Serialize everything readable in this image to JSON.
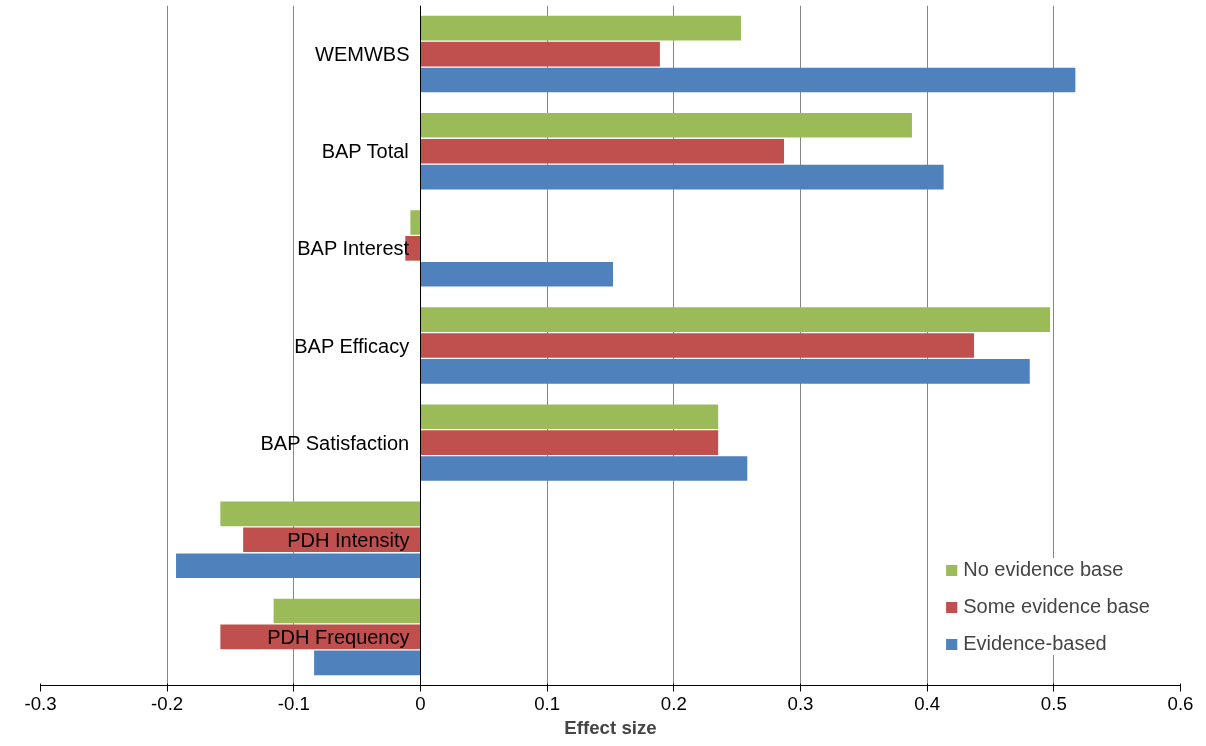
{
  "chart_data": {
    "type": "bar",
    "orientation": "horizontal",
    "xlabel": "Effect size",
    "categories": [
      "WEMWBS",
      "BAP Total",
      "BAP Interest",
      "BAP Efficacy",
      "BAP Satisfaction",
      "PDH Intensity",
      "PDH Frequency"
    ],
    "series": [
      {
        "name": "No evidence base",
        "color": "#9bbb59",
        "values": [
          0.253,
          0.388,
          -0.008,
          0.497,
          0.235,
          -0.158,
          -0.116
        ]
      },
      {
        "name": "Some evidence base",
        "color": "#c0504d",
        "values": [
          0.189,
          0.287,
          -0.012,
          0.437,
          0.235,
          -0.14,
          -0.158
        ]
      },
      {
        "name": "Evidence-based",
        "color": "#4f81bd",
        "values": [
          0.517,
          0.413,
          0.152,
          0.481,
          0.258,
          -0.193,
          -0.084
        ]
      }
    ],
    "xlim": [
      -0.3,
      0.6
    ],
    "xticks": [
      -0.3,
      -0.2,
      -0.1,
      0,
      0.1,
      0.2,
      0.3,
      0.4,
      0.5,
      0.6
    ],
    "grid": "x",
    "legend": "bottom right"
  }
}
